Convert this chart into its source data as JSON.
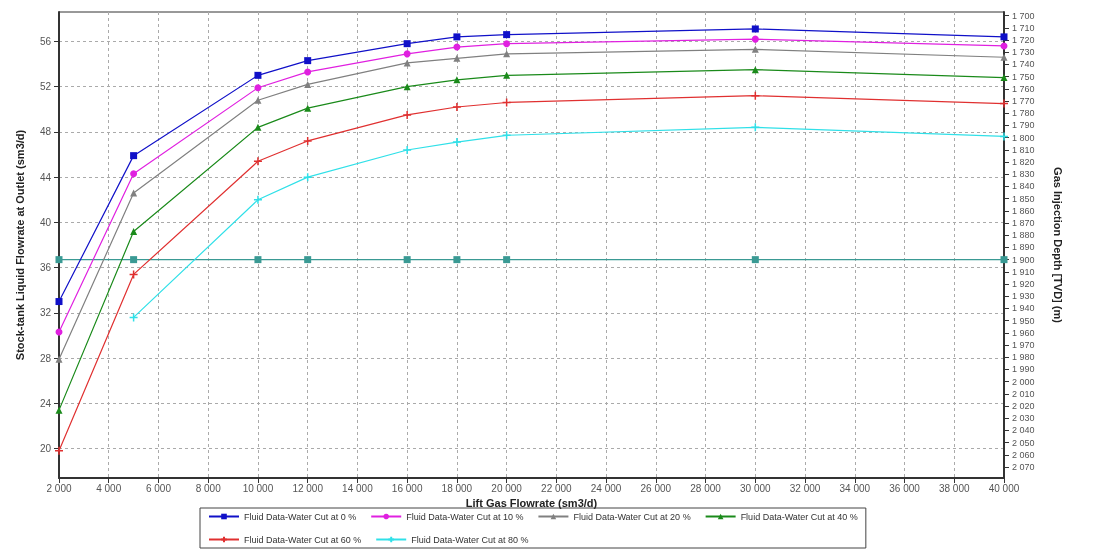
{
  "chart_data": {
    "type": "line",
    "xlabel": "Lift Gas Flowrate (sm3/d)",
    "ylabel": "Stock-tank Liquid Flowrate at Outlet (sm3/d)",
    "y2label": "Gas Injection Depth [TVD] (m)",
    "x": [
      2000,
      5000,
      10000,
      12000,
      16000,
      18000,
      20000,
      30000,
      40000
    ],
    "series": [
      {
        "name": "Fluid Data-Water Cut at 0 %",
        "color": "#1010c8",
        "marker": "square",
        "values": [
          33.0,
          45.9,
          53.0,
          54.3,
          55.8,
          56.4,
          56.6,
          57.1,
          56.4
        ]
      },
      {
        "name": "Fluid Data-Water Cut at 10 %",
        "color": "#e020e0",
        "marker": "circle",
        "values": [
          30.3,
          44.3,
          51.9,
          53.3,
          54.9,
          55.5,
          55.8,
          56.2,
          55.6
        ]
      },
      {
        "name": "Fluid Data-Water Cut at 20 %",
        "color": "#808080",
        "marker": "triangle",
        "values": [
          27.9,
          42.6,
          50.8,
          52.2,
          54.1,
          54.5,
          54.9,
          55.3,
          54.6
        ]
      },
      {
        "name": "Fluid Data-Water Cut at 40 %",
        "color": "#1a8a1a",
        "marker": "triangle",
        "values": [
          23.4,
          39.2,
          48.4,
          50.1,
          52.0,
          52.6,
          53.0,
          53.5,
          52.8
        ]
      },
      {
        "name": "Fluid Data-Water Cut at 60 %",
        "color": "#e03030",
        "marker": "cross",
        "values": [
          19.8,
          35.4,
          45.4,
          47.2,
          49.5,
          50.2,
          50.6,
          51.2,
          50.5
        ]
      },
      {
        "name": "Fluid Data-Water Cut at 80 %",
        "color": "#30e0e8",
        "marker": "cross",
        "values": [
          null,
          31.6,
          42.0,
          44.0,
          46.4,
          47.1,
          47.7,
          48.4,
          47.6
        ]
      },
      {
        "color": "#3a9a94",
        "marker": "square",
        "axis": "y2",
        "values": [
          1900,
          1900,
          1900,
          1900,
          1900,
          1900,
          1900,
          1900,
          1900
        ]
      }
    ],
    "xlim": [
      2000,
      40000
    ],
    "xticks": [
      {
        "value": 2000,
        "label": "2 000"
      },
      {
        "value": 4000,
        "label": "4 000"
      },
      {
        "value": 6000,
        "label": "6 000"
      },
      {
        "value": 8000,
        "label": "8 000"
      },
      {
        "value": 10000,
        "label": "10 000"
      },
      {
        "value": 12000,
        "label": "12 000"
      },
      {
        "value": 14000,
        "label": "14 000"
      },
      {
        "value": 16000,
        "label": "16 000"
      },
      {
        "value": 18000,
        "label": "18 000"
      },
      {
        "value": 20000,
        "label": "20 000"
      },
      {
        "value": 22000,
        "label": "22 000"
      },
      {
        "value": 24000,
        "label": "24 000"
      },
      {
        "value": 26000,
        "label": "26 000"
      },
      {
        "value": 28000,
        "label": "28 000"
      },
      {
        "value": 30000,
        "label": "30 000"
      },
      {
        "value": 32000,
        "label": "32 000"
      },
      {
        "value": 34000,
        "label": "34 000"
      },
      {
        "value": 36000,
        "label": "36 000"
      },
      {
        "value": 38000,
        "label": "38 000"
      },
      {
        "value": 40000,
        "label": "40 000"
      }
    ],
    "ylim": [
      17.4,
      58.6
    ],
    "yticks": [
      20,
      24,
      28,
      32,
      36,
      40,
      44,
      48,
      52,
      56
    ],
    "y2lim": [
      2079,
      1697
    ],
    "y2ticks": [
      {
        "value": 1700,
        "label": "1 700"
      },
      {
        "value": 1710,
        "label": "1 710"
      },
      {
        "value": 1720,
        "label": "1 720"
      },
      {
        "value": 1730,
        "label": "1 730"
      },
      {
        "value": 1740,
        "label": "1 740"
      },
      {
        "value": 1750,
        "label": "1 750"
      },
      {
        "value": 1760,
        "label": "1 760"
      },
      {
        "value": 1770,
        "label": "1 770"
      },
      {
        "value": 1780,
        "label": "1 780"
      },
      {
        "value": 1790,
        "label": "1 790"
      },
      {
        "value": 1800,
        "label": "1 800"
      },
      {
        "value": 1810,
        "label": "1 810"
      },
      {
        "value": 1820,
        "label": "1 820"
      },
      {
        "value": 1830,
        "label": "1 830"
      },
      {
        "value": 1840,
        "label": "1 840"
      },
      {
        "value": 1850,
        "label": "1 850"
      },
      {
        "value": 1860,
        "label": "1 860"
      },
      {
        "value": 1870,
        "label": "1 870"
      },
      {
        "value": 1880,
        "label": "1 880"
      },
      {
        "value": 1890,
        "label": "1 890"
      },
      {
        "value": 1900,
        "label": "1 900"
      },
      {
        "value": 1910,
        "label": "1 910"
      },
      {
        "value": 1920,
        "label": "1 920"
      },
      {
        "value": 1930,
        "label": "1 930"
      },
      {
        "value": 1940,
        "label": "1 940"
      },
      {
        "value": 1950,
        "label": "1 950"
      },
      {
        "value": 1960,
        "label": "1 960"
      },
      {
        "value": 1970,
        "label": "1 970"
      },
      {
        "value": 1980,
        "label": "1 980"
      },
      {
        "value": 1990,
        "label": "1 990"
      },
      {
        "value": 2000,
        "label": "2 000"
      },
      {
        "value": 2010,
        "label": "2 010"
      },
      {
        "value": 2020,
        "label": "2 020"
      },
      {
        "value": 2030,
        "label": "2 030"
      },
      {
        "value": 2040,
        "label": "2 040"
      },
      {
        "value": 2050,
        "label": "2 050"
      },
      {
        "value": 2060,
        "label": "2 060"
      },
      {
        "value": 2070,
        "label": "2 070"
      }
    ],
    "grid": true,
    "legend": "bottom",
    "line_style": "solid"
  }
}
